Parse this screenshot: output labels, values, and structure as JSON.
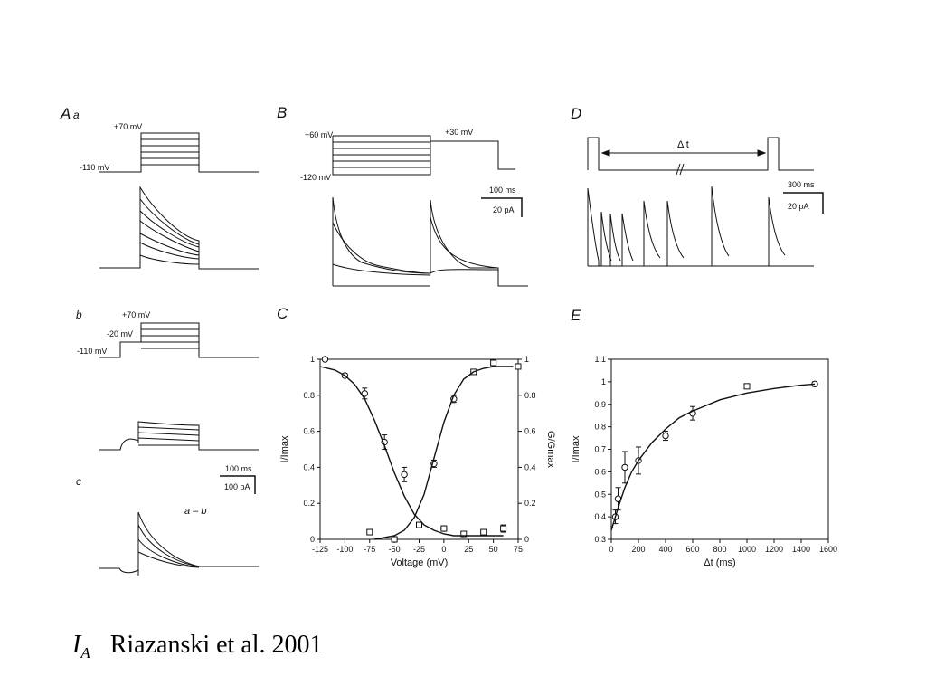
{
  "panels": {
    "Aa": {
      "label_main": "A",
      "label_sub": "a",
      "voltage_top": "+70 mV",
      "voltage_base": "-110 mV"
    },
    "Ab": {
      "label": "b",
      "voltage_top": "+70 mV",
      "voltage_mid": "-20 mV",
      "voltage_base": "-110 mV",
      "scale_time": "100 ms",
      "scale_current": "100 pA"
    },
    "Ac": {
      "label": "c",
      "annotation": "a – b"
    },
    "B": {
      "label": "B",
      "voltage_top": "+60 mV",
      "voltage_base": "-120 mV",
      "voltage_step": "+30 mV",
      "scale_time": "100 ms",
      "scale_current": "20 pA"
    },
    "C": {
      "label": "C"
    },
    "D": {
      "label": "D",
      "interval": "Δ t",
      "scale_time": "300 ms",
      "scale_current": "20 pA"
    },
    "E": {
      "label": "E"
    }
  },
  "caption": {
    "symbol": "I",
    "subscript": "A",
    "citation": "Riazanski et al. 2001"
  },
  "chart_data": [
    {
      "type": "line",
      "panel": "C",
      "xlabel": "Voltage (mV)",
      "ylabel": "I/Imax",
      "y2label": "G/Gmax",
      "xlim": [
        -125,
        75
      ],
      "ylim": [
        0,
        1.0
      ],
      "y2lim": [
        0,
        1.0
      ],
      "x_ticks": [
        -125,
        -100,
        -75,
        -50,
        -25,
        0,
        25,
        50,
        75
      ],
      "y_ticks": [
        0.0,
        0.2,
        0.4,
        0.6,
        0.8,
        1.0
      ],
      "y2_ticks": [
        0.0,
        0.2,
        0.4,
        0.6,
        0.8,
        1.0
      ],
      "series": [
        {
          "marker": "circle",
          "x": [
            -120,
            -100,
            -80,
            -60,
            -40,
            -10,
            0,
            10
          ],
          "y": [
            1.0,
            0.91,
            0.81,
            0.54,
            0.36,
            0.42,
            0.06,
            0.78
          ],
          "err": [
            0,
            0.01,
            0.03,
            0.04,
            0.04,
            0.02,
            0.01,
            0.02
          ]
        },
        {
          "marker": "square",
          "x": [
            -75,
            -50,
            -25,
            0,
            20,
            40,
            60,
            75
          ],
          "y": [
            0.04,
            0.0,
            0.08,
            0.06,
            0.03,
            0.04,
            0.06,
            0.96
          ],
          "err": [
            0.01,
            0,
            0.01,
            0.01,
            0.01,
            0.01,
            0.02,
            0.01
          ]
        },
        {
          "marker": "square",
          "x": [
            30,
            50
          ],
          "y": [
            0.93,
            0.98
          ],
          "err": [
            0.01,
            0.01
          ]
        },
        {
          "curve": "inactivation",
          "x": [
            -125,
            -110,
            -100,
            -90,
            -80,
            -70,
            -60,
            -50,
            -40,
            -30,
            -20,
            -10,
            0,
            10,
            20,
            30,
            40,
            50,
            60
          ],
          "y": [
            0.96,
            0.94,
            0.91,
            0.86,
            0.78,
            0.66,
            0.52,
            0.37,
            0.24,
            0.14,
            0.08,
            0.05,
            0.03,
            0.02,
            0.02,
            0.02,
            0.02,
            0.02,
            0.02
          ]
        },
        {
          "curve": "activation",
          "x": [
            -70,
            -60,
            -50,
            -40,
            -30,
            -20,
            -10,
            0,
            10,
            20,
            30,
            40,
            50,
            60,
            70
          ],
          "y": [
            0.0,
            0.01,
            0.02,
            0.05,
            0.12,
            0.25,
            0.45,
            0.65,
            0.8,
            0.89,
            0.93,
            0.95,
            0.96,
            0.96,
            0.96
          ]
        }
      ]
    },
    {
      "type": "scatter",
      "panel": "E",
      "xlabel": "Δt (ms)",
      "ylabel": "I/Imax",
      "xlim": [
        0,
        1600
      ],
      "ylim": [
        0.3,
        1.1
      ],
      "x_ticks": [
        0,
        200,
        400,
        600,
        800,
        1000,
        1200,
        1400,
        1600
      ],
      "y_ticks": [
        0.3,
        0.4,
        0.5,
        0.6,
        0.7,
        0.8,
        0.9,
        1.0,
        1.1
      ],
      "series": [
        {
          "marker": "circle",
          "x": [
            30,
            50,
            100,
            200,
            400,
            600,
            1500
          ],
          "y": [
            0.4,
            0.48,
            0.62,
            0.65,
            0.76,
            0.86,
            0.99
          ],
          "err": [
            0.03,
            0.05,
            0.07,
            0.06,
            0.02,
            0.03,
            0.01
          ]
        },
        {
          "marker": "square",
          "x": [
            1000
          ],
          "y": [
            0.98
          ],
          "err": [
            0.01
          ]
        },
        {
          "curve": "fit",
          "x": [
            0,
            50,
            100,
            150,
            200,
            300,
            400,
            500,
            600,
            800,
            1000,
            1200,
            1400,
            1500
          ],
          "y": [
            0.34,
            0.44,
            0.53,
            0.6,
            0.65,
            0.73,
            0.79,
            0.84,
            0.87,
            0.92,
            0.95,
            0.97,
            0.985,
            0.99
          ]
        }
      ]
    }
  ]
}
